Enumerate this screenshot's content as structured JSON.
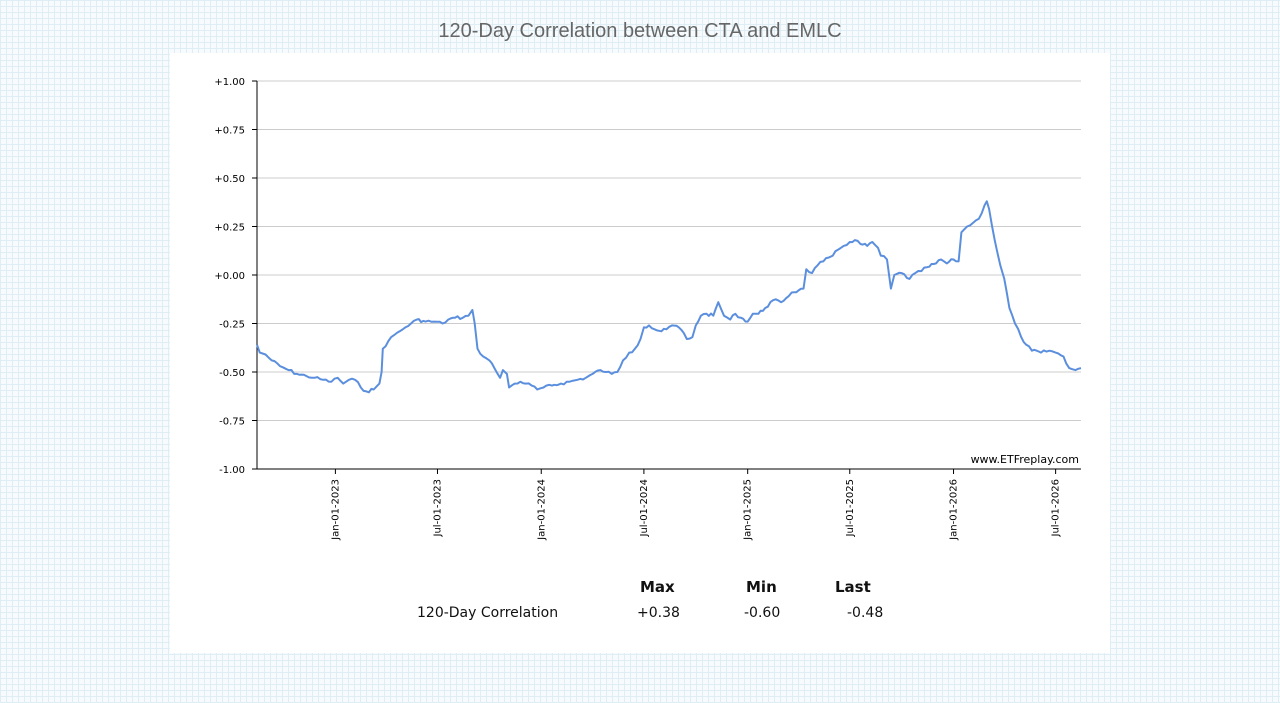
{
  "page": {
    "title": "120-Day Correlation between CTA and EMLC",
    "watermark": "www.ETFreplay.com"
  },
  "chart_data": {
    "type": "line",
    "title": "120-Day Correlation between CTA and EMLC",
    "xlabel": "",
    "ylabel": "",
    "ylim": [
      -1.0,
      1.0
    ],
    "y_ticks": [
      "+1.00",
      "+0.75",
      "+0.50",
      "+0.25",
      "+0.00",
      "-0.25",
      "-0.50",
      "-0.75",
      "-1.00"
    ],
    "x_ticks": [
      "Jan-01-2023",
      "Jul-01-2023",
      "Jan-01-2024",
      "Jul-01-2024",
      "Jan-01-2025",
      "Jul-01-2025",
      "Jan-01-2026",
      "Jul-01-2026"
    ],
    "xlim": [
      "2022-08-15",
      "2026-08-15"
    ],
    "grid": true,
    "line_color": "#5b8fde",
    "series": [
      {
        "name": "",
        "points": [
          [
            "2022-08-15",
            -0.36
          ],
          [
            "2022-08-20",
            -0.4
          ],
          [
            "2022-08-30",
            -0.41
          ],
          [
            "2022-09-10",
            -0.44
          ],
          [
            "2022-09-25",
            -0.47
          ],
          [
            "2022-10-10",
            -0.49
          ],
          [
            "2022-10-25",
            -0.51
          ],
          [
            "2022-11-10",
            -0.52
          ],
          [
            "2022-11-25",
            -0.53
          ],
          [
            "2022-12-10",
            -0.54
          ],
          [
            "2022-12-25",
            -0.55
          ],
          [
            "2023-01-05",
            -0.53
          ],
          [
            "2023-01-15",
            -0.56
          ],
          [
            "2023-01-25",
            -0.54
          ],
          [
            "2023-02-05",
            -0.54
          ],
          [
            "2023-02-15",
            -0.58
          ],
          [
            "2023-02-25",
            -0.6
          ],
          [
            "2023-03-10",
            -0.59
          ],
          [
            "2023-03-20",
            -0.56
          ],
          [
            "2023-03-24",
            -0.5
          ],
          [
            "2023-03-26",
            -0.38
          ],
          [
            "2023-04-05",
            -0.34
          ],
          [
            "2023-04-15",
            -0.31
          ],
          [
            "2023-04-25",
            -0.29
          ],
          [
            "2023-05-05",
            -0.27
          ],
          [
            "2023-05-15",
            -0.25
          ],
          [
            "2023-05-25",
            -0.23
          ],
          [
            "2023-06-10",
            -0.24
          ],
          [
            "2023-06-25",
            -0.24
          ],
          [
            "2023-07-10",
            -0.25
          ],
          [
            "2023-07-20",
            -0.23
          ],
          [
            "2023-08-01",
            -0.22
          ],
          [
            "2023-08-15",
            -0.22
          ],
          [
            "2023-08-25",
            -0.21
          ],
          [
            "2023-09-01",
            -0.18
          ],
          [
            "2023-09-05",
            -0.25
          ],
          [
            "2023-09-10",
            -0.38
          ],
          [
            "2023-09-20",
            -0.42
          ],
          [
            "2023-10-01",
            -0.44
          ],
          [
            "2023-10-10",
            -0.48
          ],
          [
            "2023-10-20",
            -0.53
          ],
          [
            "2023-10-25",
            -0.49
          ],
          [
            "2023-11-01",
            -0.51
          ],
          [
            "2023-11-05",
            -0.58
          ],
          [
            "2023-11-15",
            -0.56
          ],
          [
            "2023-11-25",
            -0.55
          ],
          [
            "2023-12-05",
            -0.56
          ],
          [
            "2023-12-15",
            -0.57
          ],
          [
            "2023-12-25",
            -0.59
          ],
          [
            "2024-01-05",
            -0.58
          ],
          [
            "2024-01-20",
            -0.57
          ],
          [
            "2024-02-05",
            -0.56
          ],
          [
            "2024-02-20",
            -0.55
          ],
          [
            "2024-03-05",
            -0.54
          ],
          [
            "2024-03-20",
            -0.53
          ],
          [
            "2024-04-01",
            -0.51
          ],
          [
            "2024-04-15",
            -0.49
          ],
          [
            "2024-04-25",
            -0.5
          ],
          [
            "2024-05-05",
            -0.51
          ],
          [
            "2024-05-15",
            -0.5
          ],
          [
            "2024-05-25",
            -0.44
          ],
          [
            "2024-06-05",
            -0.4
          ],
          [
            "2024-06-15",
            -0.38
          ],
          [
            "2024-06-25",
            -0.33
          ],
          [
            "2024-07-01",
            -0.27
          ],
          [
            "2024-07-10",
            -0.26
          ],
          [
            "2024-07-20",
            -0.28
          ],
          [
            "2024-08-01",
            -0.29
          ],
          [
            "2024-08-10",
            -0.28
          ],
          [
            "2024-08-20",
            -0.26
          ],
          [
            "2024-09-01",
            -0.27
          ],
          [
            "2024-09-10",
            -0.3
          ],
          [
            "2024-09-15",
            -0.33
          ],
          [
            "2024-09-25",
            -0.32
          ],
          [
            "2024-10-01",
            -0.26
          ],
          [
            "2024-10-10",
            -0.21
          ],
          [
            "2024-10-20",
            -0.2
          ],
          [
            "2024-11-01",
            -0.21
          ],
          [
            "2024-11-10",
            -0.14
          ],
          [
            "2024-11-20",
            -0.21
          ],
          [
            "2024-12-01",
            -0.23
          ],
          [
            "2024-12-10",
            -0.2
          ],
          [
            "2024-12-20",
            -0.22
          ],
          [
            "2025-01-01",
            -0.24
          ],
          [
            "2025-01-10",
            -0.2
          ],
          [
            "2025-01-20",
            -0.2
          ],
          [
            "2025-02-01",
            -0.17
          ],
          [
            "2025-02-15",
            -0.13
          ],
          [
            "2025-03-01",
            -0.14
          ],
          [
            "2025-03-10",
            -0.12
          ],
          [
            "2025-03-20",
            -0.09
          ],
          [
            "2025-04-01",
            -0.08
          ],
          [
            "2025-04-10",
            -0.07
          ],
          [
            "2025-04-15",
            0.03
          ],
          [
            "2025-04-25",
            0.01
          ],
          [
            "2025-05-05",
            0.05
          ],
          [
            "2025-05-15",
            0.07
          ],
          [
            "2025-05-25",
            0.09
          ],
          [
            "2025-06-01",
            0.1
          ],
          [
            "2025-06-10",
            0.13
          ],
          [
            "2025-06-20",
            0.15
          ],
          [
            "2025-07-01",
            0.17
          ],
          [
            "2025-07-10",
            0.18
          ],
          [
            "2025-07-20",
            0.16
          ],
          [
            "2025-08-01",
            0.15
          ],
          [
            "2025-08-10",
            0.17
          ],
          [
            "2025-08-20",
            0.14
          ],
          [
            "2025-08-25",
            0.1
          ],
          [
            "2025-09-05",
            0.08
          ],
          [
            "2025-09-12",
            -0.07
          ],
          [
            "2025-09-18",
            0.0
          ],
          [
            "2025-10-01",
            0.01
          ],
          [
            "2025-10-15",
            -0.02
          ],
          [
            "2025-10-25",
            0.01
          ],
          [
            "2025-11-05",
            0.02
          ],
          [
            "2025-11-15",
            0.04
          ],
          [
            "2025-12-01",
            0.06
          ],
          [
            "2025-12-10",
            0.08
          ],
          [
            "2025-12-20",
            0.06
          ],
          [
            "2026-01-01",
            0.08
          ],
          [
            "2026-01-10",
            0.07
          ],
          [
            "2026-01-15",
            0.22
          ],
          [
            "2026-01-25",
            0.25
          ],
          [
            "2026-02-05",
            0.27
          ],
          [
            "2026-02-15",
            0.29
          ],
          [
            "2026-02-25",
            0.36
          ],
          [
            "2026-03-01",
            0.38
          ],
          [
            "2026-03-05",
            0.34
          ],
          [
            "2026-03-15",
            0.18
          ],
          [
            "2026-03-25",
            0.05
          ],
          [
            "2026-04-01",
            -0.02
          ],
          [
            "2026-04-10",
            -0.17
          ],
          [
            "2026-04-20",
            -0.25
          ],
          [
            "2026-05-01",
            -0.32
          ],
          [
            "2026-05-10",
            -0.36
          ],
          [
            "2026-05-20",
            -0.39
          ],
          [
            "2026-06-05",
            -0.4
          ],
          [
            "2026-06-20",
            -0.39
          ],
          [
            "2026-07-01",
            -0.4
          ],
          [
            "2026-07-15",
            -0.42
          ],
          [
            "2026-07-25",
            -0.48
          ],
          [
            "2026-08-05",
            -0.49
          ],
          [
            "2026-08-15",
            -0.48
          ]
        ]
      }
    ]
  },
  "stats": {
    "headers": [
      "Max",
      "Min",
      "Last"
    ],
    "row_label": "120-Day Correlation",
    "values": [
      "+0.38",
      "-0.60",
      "-0.48"
    ]
  }
}
